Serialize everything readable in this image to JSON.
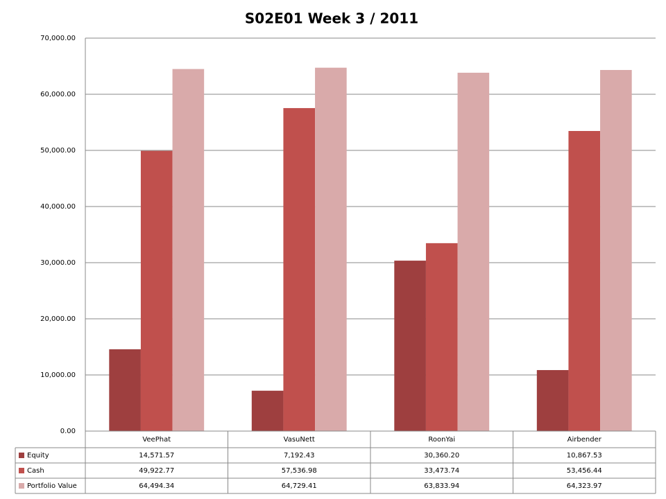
{
  "chart_data": {
    "type": "bar",
    "title": "S02E01 Week 3 / 2011",
    "categories": [
      "VeePhat",
      "VasuNett",
      "RoonYai",
      "Airbender"
    ],
    "series": [
      {
        "name": "Equity",
        "color": "#9e3f3f",
        "values": [
          14571.57,
          7192.43,
          30360.2,
          10867.53
        ],
        "value_labels": [
          "14,571.57",
          "7,192.43",
          "30,360.20",
          "10,867.53"
        ]
      },
      {
        "name": "Cash",
        "color": "#c0504d",
        "values": [
          49922.77,
          57536.98,
          33473.74,
          53456.44
        ],
        "value_labels": [
          "49,922.77",
          "57,536.98",
          "33,473.74",
          "53,456.44"
        ]
      },
      {
        "name": "Portfolio Value",
        "color": "#d9aaaa",
        "values": [
          64494.34,
          64729.41,
          63833.94,
          64323.97
        ],
        "value_labels": [
          "64,494.34",
          "64,729.41",
          "63,833.94",
          "64,323.97"
        ]
      }
    ],
    "ylim": [
      0,
      70000
    ],
    "yticks": [
      {
        "value": 0,
        "label": "0.00"
      },
      {
        "value": 10000,
        "label": "10,000.00"
      },
      {
        "value": 20000,
        "label": "20,000.00"
      },
      {
        "value": 30000,
        "label": "30,000.00"
      },
      {
        "value": 40000,
        "label": "40,000.00"
      },
      {
        "value": 50000,
        "label": "50,000.00"
      },
      {
        "value": 60000,
        "label": "60,000.00"
      },
      {
        "value": 70000,
        "label": "70,000.00"
      }
    ],
    "grid": true
  }
}
